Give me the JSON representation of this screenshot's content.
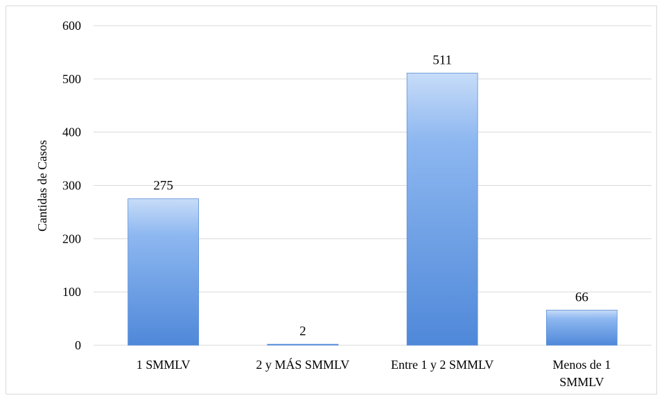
{
  "chart_data": {
    "type": "bar",
    "categories": [
      [
        "1 SMMLV"
      ],
      [
        "2 y MÁS SMMLV"
      ],
      [
        "Entre 1 y 2 SMMLV"
      ],
      [
        "Menos de 1",
        "SMMLV"
      ]
    ],
    "values": [
      275,
      2,
      511,
      66
    ],
    "data_labels": [
      "275",
      "2",
      "511",
      "66"
    ],
    "title": "",
    "xlabel": "",
    "ylabel": "Cantidas de Casos",
    "ylim": [
      0,
      600
    ],
    "yticks": [
      0,
      100,
      200,
      300,
      400,
      500,
      600
    ],
    "ytick_labels": [
      "0",
      "100",
      "200",
      "300",
      "400",
      "500",
      "600"
    ],
    "grid": true,
    "legend": "none",
    "colors": {
      "bar_light": "#c7dcf8",
      "bar_mid": "#8db7f0",
      "bar_dark": "#4f88d9",
      "bar_edge": "#5b8fd6",
      "grid": "#d9d9d9"
    }
  }
}
